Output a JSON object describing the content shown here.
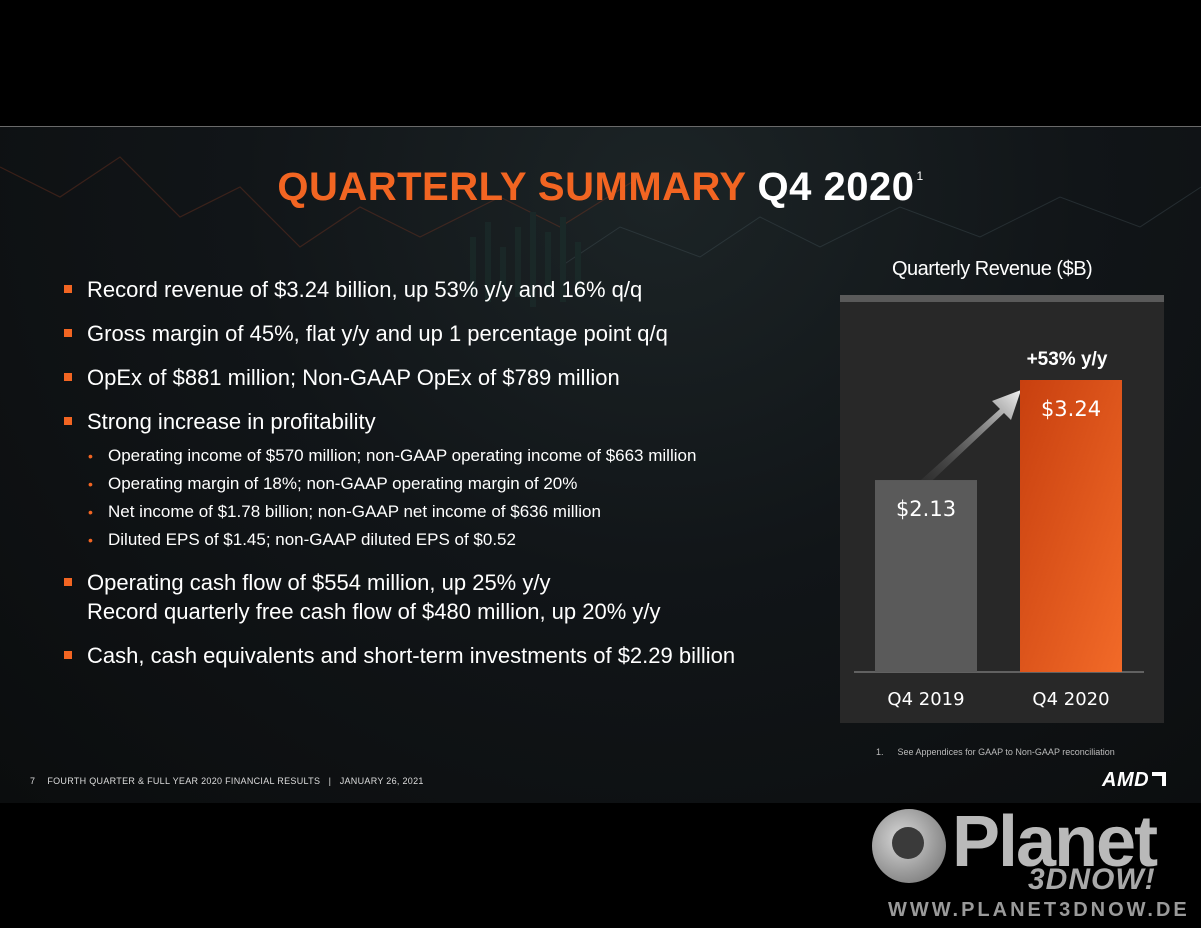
{
  "slide": {
    "title_orange": "QUARTERLY SUMMARY",
    "title_white": "Q4 2020",
    "title_sup": "1"
  },
  "bullets": {
    "b1": "Record revenue of $3.24 billion, up 53% y/y and 16% q/q",
    "b2": "Gross margin of 45%, flat y/y and up 1 percentage point q/q",
    "b3": "OpEx of $881 million; Non-GAAP OpEx of $789 million",
    "b4": "Strong increase in profitability",
    "sub": [
      "Operating income of $570 million; non-GAAP operating income of $663 million",
      "Operating margin of 18%; non-GAAP operating margin of 20%",
      "Net income of $1.78 billion; non-GAAP net income of $636 million",
      "Diluted EPS of $1.45; non-GAAP diluted EPS of $0.52"
    ],
    "b5_line1": "Operating cash flow of $554 million, up 25% y/y",
    "b5_line2": "Record quarterly free cash flow of $480 million, up 20% y/y",
    "b6": "Cash, cash equivalents and short-term investments of $2.29 billion",
    "sub_marker": "•"
  },
  "chart_data": {
    "type": "bar",
    "title": "Quarterly Revenue ($B)",
    "categories": [
      "Q4 2019",
      "Q4 2020"
    ],
    "values": [
      2.13,
      3.24
    ],
    "value_labels": [
      "$2.13",
      "$3.24"
    ],
    "annotation": "+53% y/y",
    "colors": [
      "#5a5a5a",
      "#e8561a"
    ],
    "ylim": [
      0,
      3.24
    ]
  },
  "footnote": {
    "num": "1.",
    "text": "See Appendices for GAAP to Non-GAAP reconciliation"
  },
  "footer": {
    "page": "7",
    "text": "FOURTH QUARTER & FULL YEAR 2020 FINANCIAL RESULTS   |   JANUARY 26, 2021"
  },
  "logo": {
    "text": "AMD"
  },
  "watermark": {
    "word": "Planet",
    "sub": "3DNOW!",
    "url": "WWW.PLANET3DNOW.DE"
  }
}
